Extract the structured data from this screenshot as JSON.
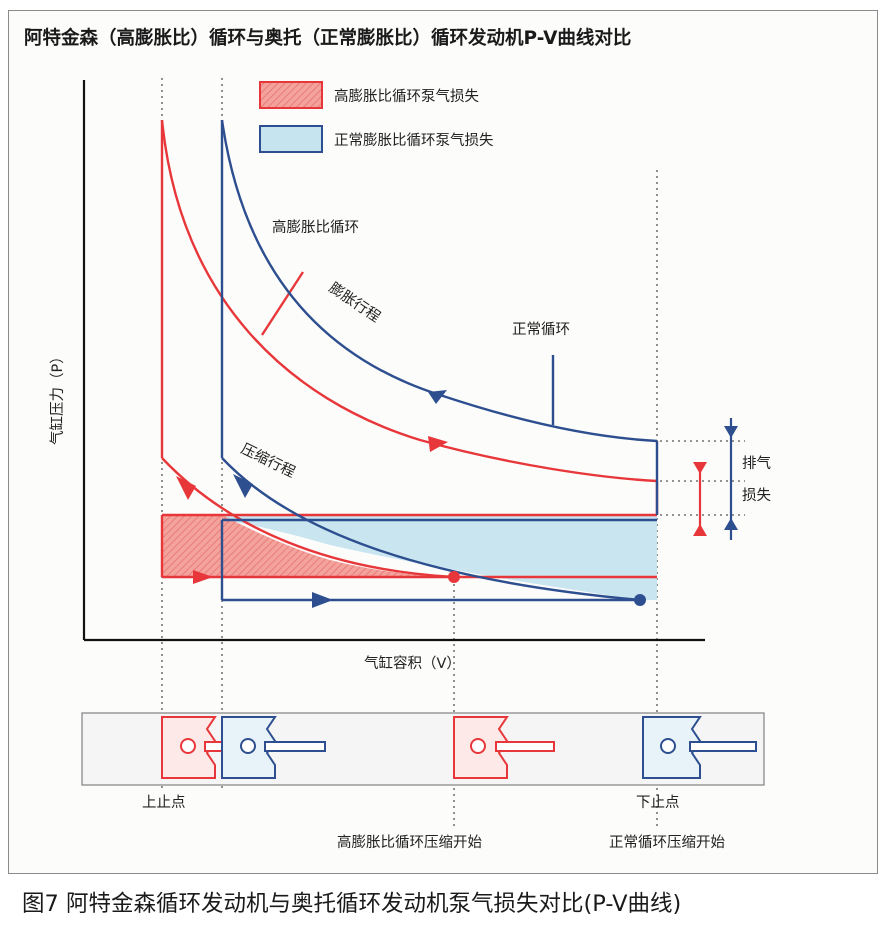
{
  "title": "阿特金森（高膨胀比）循环与奥托（正常膨胀比）循环发动机P-V曲线对比",
  "caption": "图7 阿特金森循环发动机与奥托循环发动机泵气损失对比(P-V曲线)",
  "legend": {
    "high_ratio_loss": "高膨胀比循环泵气损失",
    "normal_ratio_loss": "正常膨胀比循环泵气损失"
  },
  "axes": {
    "ylabel": "气缸压力（P）",
    "xlabel": "气缸容积（V）"
  },
  "curve_labels": {
    "high_ratio_cycle": "高膨胀比循环",
    "normal_cycle": "正常循环",
    "expansion_stroke": "膨胀行程",
    "compression_stroke": "压缩行程"
  },
  "exhaust_loss": [
    "排气",
    "损失"
  ],
  "bottom_labels": {
    "tdc": "上止点",
    "bdc": "下止点",
    "high_ratio_compression_start": "高膨胀比循环压缩开始",
    "normal_compression_start": "正常循环压缩开始"
  },
  "colors": {
    "red": "#e8373a",
    "blue": "#2e4f8f",
    "red_fill": "#ef8f8a",
    "blue_fill": "#c6e4ef"
  }
}
